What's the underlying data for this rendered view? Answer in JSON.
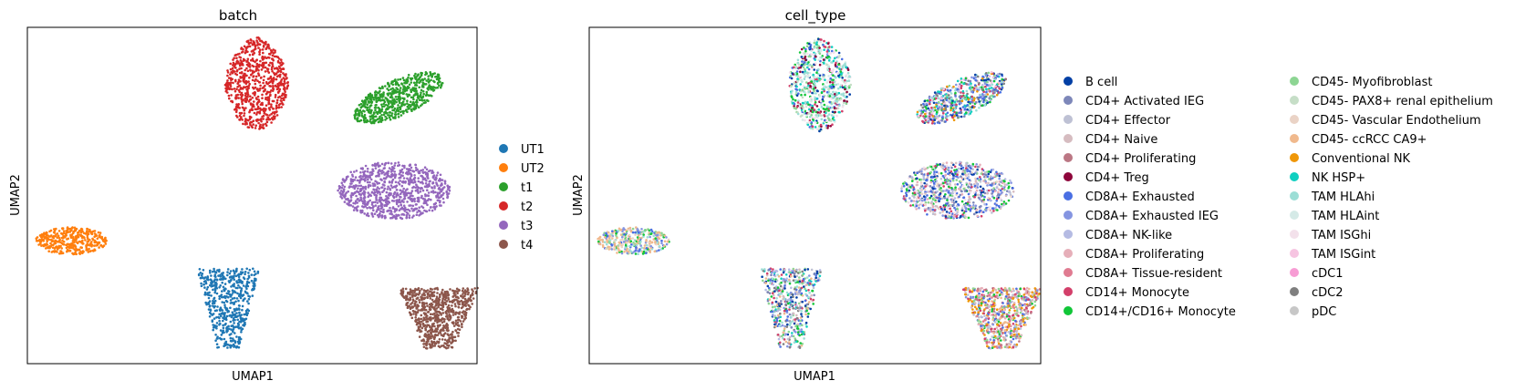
{
  "chart_data": [
    {
      "type": "scatter",
      "title": "batch",
      "xlabel": "UMAP1",
      "ylabel": "UMAP2",
      "grid": false,
      "ticks": "none",
      "legend_position": "right",
      "legend_columns": 1,
      "series": [
        {
          "name": "UT1",
          "color": "#1f77b4",
          "n": 520,
          "shape": "cone",
          "cx": 0.447,
          "cy": 0.165,
          "rx": 0.07,
          "ry": 0.118
        },
        {
          "name": "UT2",
          "color": "#ff7f0e",
          "n": 360,
          "shape": "ellipse",
          "cx": 0.098,
          "cy": 0.365,
          "rx": 0.08,
          "ry": 0.04
        },
        {
          "name": "t1",
          "color": "#2ca02c",
          "n": 600,
          "shape": "tilted",
          "cx": 0.825,
          "cy": 0.79,
          "rx": 0.115,
          "ry": 0.05,
          "angle": 0.6
        },
        {
          "name": "t2",
          "color": "#d62728",
          "n": 720,
          "shape": "blob",
          "cx": 0.51,
          "cy": 0.83,
          "rx": 0.07,
          "ry": 0.14
        },
        {
          "name": "t3",
          "color": "#9467bd",
          "n": 850,
          "shape": "ellipse",
          "cx": 0.815,
          "cy": 0.515,
          "rx": 0.125,
          "ry": 0.085
        },
        {
          "name": "t4",
          "color": "#8c564b",
          "n": 700,
          "shape": "cone",
          "cx": 0.915,
          "cy": 0.135,
          "rx": 0.09,
          "ry": 0.09
        }
      ]
    },
    {
      "type": "scatter",
      "title": "cell_type",
      "xlabel": "UMAP1",
      "ylabel": "UMAP2",
      "grid": false,
      "ticks": "none",
      "legend_position": "right",
      "legend_columns": 2,
      "categories": [
        {
          "name": "B cell",
          "color": "#023fa5"
        },
        {
          "name": "CD4+ Activated IEG",
          "color": "#7d87b9"
        },
        {
          "name": "CD4+ Effector",
          "color": "#bec1d4"
        },
        {
          "name": "CD4+ Naive",
          "color": "#d6bcc0"
        },
        {
          "name": "CD4+ Proliferating",
          "color": "#bb7784"
        },
        {
          "name": "CD4+ Treg",
          "color": "#8e063b"
        },
        {
          "name": "CD8A+ Exhausted",
          "color": "#4a6fe3"
        },
        {
          "name": "CD8A+ Exhausted IEG",
          "color": "#8595e1"
        },
        {
          "name": "CD8A+ NK-like",
          "color": "#b5bbe3"
        },
        {
          "name": "CD8A+ Proliferating",
          "color": "#e6afb9"
        },
        {
          "name": "CD8A+ Tissue-resident",
          "color": "#e07b91"
        },
        {
          "name": "CD14+ Monocyte",
          "color": "#d33f6a"
        },
        {
          "name": "CD14+/CD16+ Monocyte",
          "color": "#11c638"
        },
        {
          "name": "CD45- Myofibroblast",
          "color": "#8dd593"
        },
        {
          "name": "CD45- PAX8+ renal epithelium",
          "color": "#c6dec7"
        },
        {
          "name": "CD45- Vascular Endothelium",
          "color": "#ead3c6"
        },
        {
          "name": "CD45- ccRCC CA9+",
          "color": "#f0b98d"
        },
        {
          "name": "Conventional NK",
          "color": "#ef9708"
        },
        {
          "name": "NK HSP+",
          "color": "#0fcfc0"
        },
        {
          "name": "TAM HLAhi",
          "color": "#9cded6"
        },
        {
          "name": "TAM HLAint",
          "color": "#d5eae7"
        },
        {
          "name": "TAM ISGhi",
          "color": "#f3e1eb"
        },
        {
          "name": "TAM ISGint",
          "color": "#f6c4e1"
        },
        {
          "name": "cDC1",
          "color": "#f79cd4"
        },
        {
          "name": "cDC2",
          "color": "#7f7f7f"
        },
        {
          "name": "pDC",
          "color": "#c7c7c7"
        }
      ]
    }
  ]
}
